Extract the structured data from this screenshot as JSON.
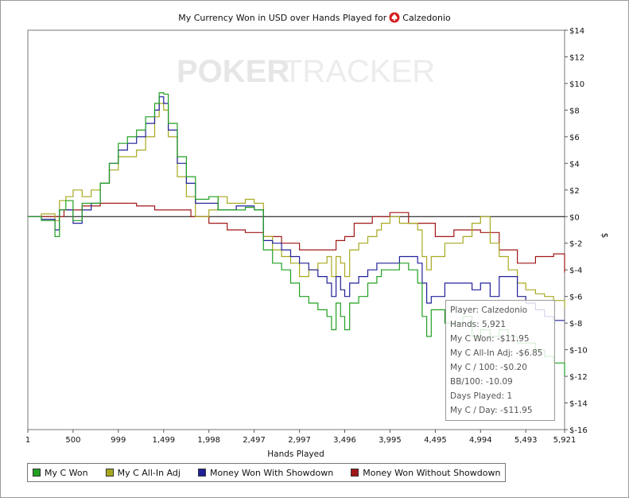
{
  "chart_data": {
    "type": "line",
    "title": "My Currency Won in USD over Hands Played for",
    "title_player": "Calzedonio",
    "xlabel": "Hands Played",
    "ylabel": "$",
    "watermark_left": "POKER",
    "watermark_right": "TRACKER",
    "xlim": [
      1,
      5921
    ],
    "ylim": [
      -16,
      14
    ],
    "x_ticks": [
      1,
      500,
      999,
      1499,
      1998,
      2497,
      2997,
      3496,
      3995,
      4495,
      4994,
      5493,
      5921
    ],
    "x_tick_labels": [
      "1",
      "500",
      "999",
      "1,499",
      "1,998",
      "2,497",
      "2,997",
      "3,496",
      "3,995",
      "4,495",
      "4,994",
      "5,493",
      "5,921"
    ],
    "y_ticks": [
      14,
      12,
      10,
      8,
      6,
      4,
      2,
      0,
      -2,
      -4,
      -6,
      -8,
      -10,
      -12,
      -14,
      -16
    ],
    "y_tick_labels": [
      "$14",
      "$12",
      "$10",
      "$8",
      "$6",
      "$4",
      "$2",
      "$0",
      "$-2",
      "$-4",
      "$-6",
      "$-8",
      "$-10",
      "$-12",
      "$-14",
      "$-16"
    ],
    "legend_position": "bottom",
    "series": [
      {
        "name": "My C Won",
        "color": "#22a022",
        "x": [
          1,
          150,
          300,
          350,
          420,
          500,
          600,
          700,
          800,
          900,
          999,
          1100,
          1200,
          1300,
          1400,
          1450,
          1499,
          1550,
          1650,
          1750,
          1850,
          1998,
          2100,
          2200,
          2300,
          2400,
          2497,
          2600,
          2700,
          2800,
          2900,
          2997,
          3100,
          3200,
          3300,
          3350,
          3400,
          3450,
          3496,
          3550,
          3650,
          3750,
          3850,
          3900,
          3995,
          4100,
          4200,
          4300,
          4350,
          4400,
          4450,
          4495,
          4600,
          4700,
          4800,
          4900,
          4994,
          5100,
          5200,
          5300,
          5400,
          5493,
          5600,
          5700,
          5800,
          5921
        ],
        "values": [
          0,
          -0.3,
          -1.5,
          0.5,
          1.2,
          -0.3,
          1,
          1,
          2.5,
          4,
          5.5,
          6,
          6.5,
          7.5,
          8.5,
          9.3,
          9.2,
          7,
          4.5,
          3,
          1.3,
          1.5,
          0.5,
          0.5,
          0.5,
          0.7,
          0.5,
          -2.5,
          -3.5,
          -4,
          -5,
          -6,
          -6.5,
          -7,
          -7.5,
          -8.5,
          -6.5,
          -7.5,
          -8.5,
          -6.5,
          -6,
          -5,
          -4.5,
          -4,
          -4,
          -3.5,
          -4,
          -5,
          -7.5,
          -9,
          -7,
          -7,
          -8,
          -8,
          -7.5,
          -9,
          -8.5,
          -9,
          -8.5,
          -9,
          -9.5,
          -9.5,
          -10,
          -10.5,
          -11,
          -11.95
        ]
      },
      {
        "name": "My C All-In Adj",
        "color": "#a8a820",
        "x": [
          1,
          150,
          300,
          350,
          420,
          500,
          600,
          700,
          800,
          900,
          999,
          1100,
          1200,
          1300,
          1400,
          1450,
          1499,
          1550,
          1650,
          1750,
          1850,
          1998,
          2100,
          2200,
          2300,
          2400,
          2497,
          2600,
          2700,
          2800,
          2900,
          2997,
          3100,
          3200,
          3300,
          3350,
          3400,
          3450,
          3496,
          3550,
          3650,
          3750,
          3850,
          3900,
          3995,
          4100,
          4200,
          4300,
          4350,
          4400,
          4450,
          4495,
          4600,
          4700,
          4800,
          4900,
          4994,
          5100,
          5200,
          5300,
          5400,
          5493,
          5600,
          5700,
          5800,
          5921
        ],
        "values": [
          0,
          0.2,
          -0.3,
          1.2,
          1.5,
          2,
          1.5,
          2,
          2.5,
          3.5,
          4.5,
          4.5,
          5,
          6,
          7.5,
          8.5,
          8,
          6,
          3,
          1.5,
          0,
          0.5,
          1.5,
          1,
          1,
          1.3,
          1,
          -1.5,
          -2.5,
          -3,
          -3.5,
          -4.5,
          -4,
          -3.5,
          -3,
          -4.5,
          -3,
          -3.5,
          -4.5,
          -2.5,
          -2,
          -1.5,
          -1,
          -0.5,
          0,
          -0.5,
          -0.5,
          -1,
          -3,
          -4,
          -3,
          -3,
          -2,
          -2,
          -1.5,
          -0.5,
          0,
          -2,
          -3,
          -4,
          -5,
          -5.5,
          -5.8,
          -6,
          -6.3,
          -6.85
        ]
      },
      {
        "name": "Money Won With Showdown",
        "color": "#20209a",
        "x": [
          1,
          150,
          300,
          350,
          420,
          500,
          600,
          700,
          800,
          900,
          999,
          1100,
          1200,
          1300,
          1400,
          1450,
          1499,
          1550,
          1650,
          1750,
          1850,
          1998,
          2100,
          2200,
          2300,
          2400,
          2497,
          2600,
          2700,
          2800,
          2900,
          2997,
          3100,
          3200,
          3300,
          3350,
          3400,
          3450,
          3496,
          3550,
          3650,
          3750,
          3850,
          3900,
          3995,
          4100,
          4200,
          4300,
          4350,
          4400,
          4450,
          4495,
          4600,
          4700,
          4800,
          4900,
          4994,
          5100,
          5200,
          5300,
          5400,
          5493,
          5600,
          5700,
          5800,
          5921
        ],
        "values": [
          0,
          -0.2,
          -1,
          0.5,
          0.5,
          -0.5,
          0.5,
          1,
          2.5,
          4,
          5,
          5.5,
          6,
          7,
          8,
          9,
          8.5,
          6.5,
          4,
          2.5,
          1,
          1,
          0.5,
          0.5,
          0.8,
          0.8,
          0.5,
          -1.8,
          -2,
          -2.5,
          -3,
          -3.5,
          -4,
          -4.5,
          -5,
          -6,
          -4.5,
          -5.5,
          -6,
          -5,
          -4.5,
          -4,
          -3.5,
          -3.5,
          -3.5,
          -3,
          -3,
          -3.5,
          -5,
          -6.5,
          -6,
          -6,
          -5,
          -5,
          -5,
          -5.5,
          -5,
          -6,
          -4.5,
          -4.5,
          -6,
          -6.5,
          -7,
          -7.5,
          -7.8,
          -7.8
        ]
      },
      {
        "name": "Money Won Without Showdown",
        "color": "#a01818",
        "x": [
          1,
          200,
          400,
          600,
          800,
          999,
          1200,
          1400,
          1600,
          1800,
          1998,
          2200,
          2400,
          2600,
          2800,
          2997,
          3200,
          3400,
          3496,
          3600,
          3800,
          3995,
          4200,
          4495,
          4700,
          4994,
          5200,
          5400,
          5600,
          5800,
          5921
        ],
        "values": [
          0,
          0,
          0.5,
          0.8,
          1,
          1,
          0.8,
          0.5,
          0.5,
          0,
          -0.5,
          -1,
          -1.2,
          -1.5,
          -2,
          -2.5,
          -2.5,
          -1.8,
          -1.5,
          -0.5,
          0,
          0.3,
          -0.5,
          -1.5,
          -1,
          -1.2,
          -2.5,
          -3.5,
          -3,
          -2.8,
          -4.2
        ]
      }
    ],
    "tooltip": [
      "Player: Calzedonio",
      "Hands: 5,921",
      "My C Won: -$11.95",
      "My C All-In Adj: -$6.85",
      "My C / 100: -$0.20",
      "BB/100: -10.09",
      "Days Played: 1",
      "My C / Day: -$11.95"
    ]
  }
}
